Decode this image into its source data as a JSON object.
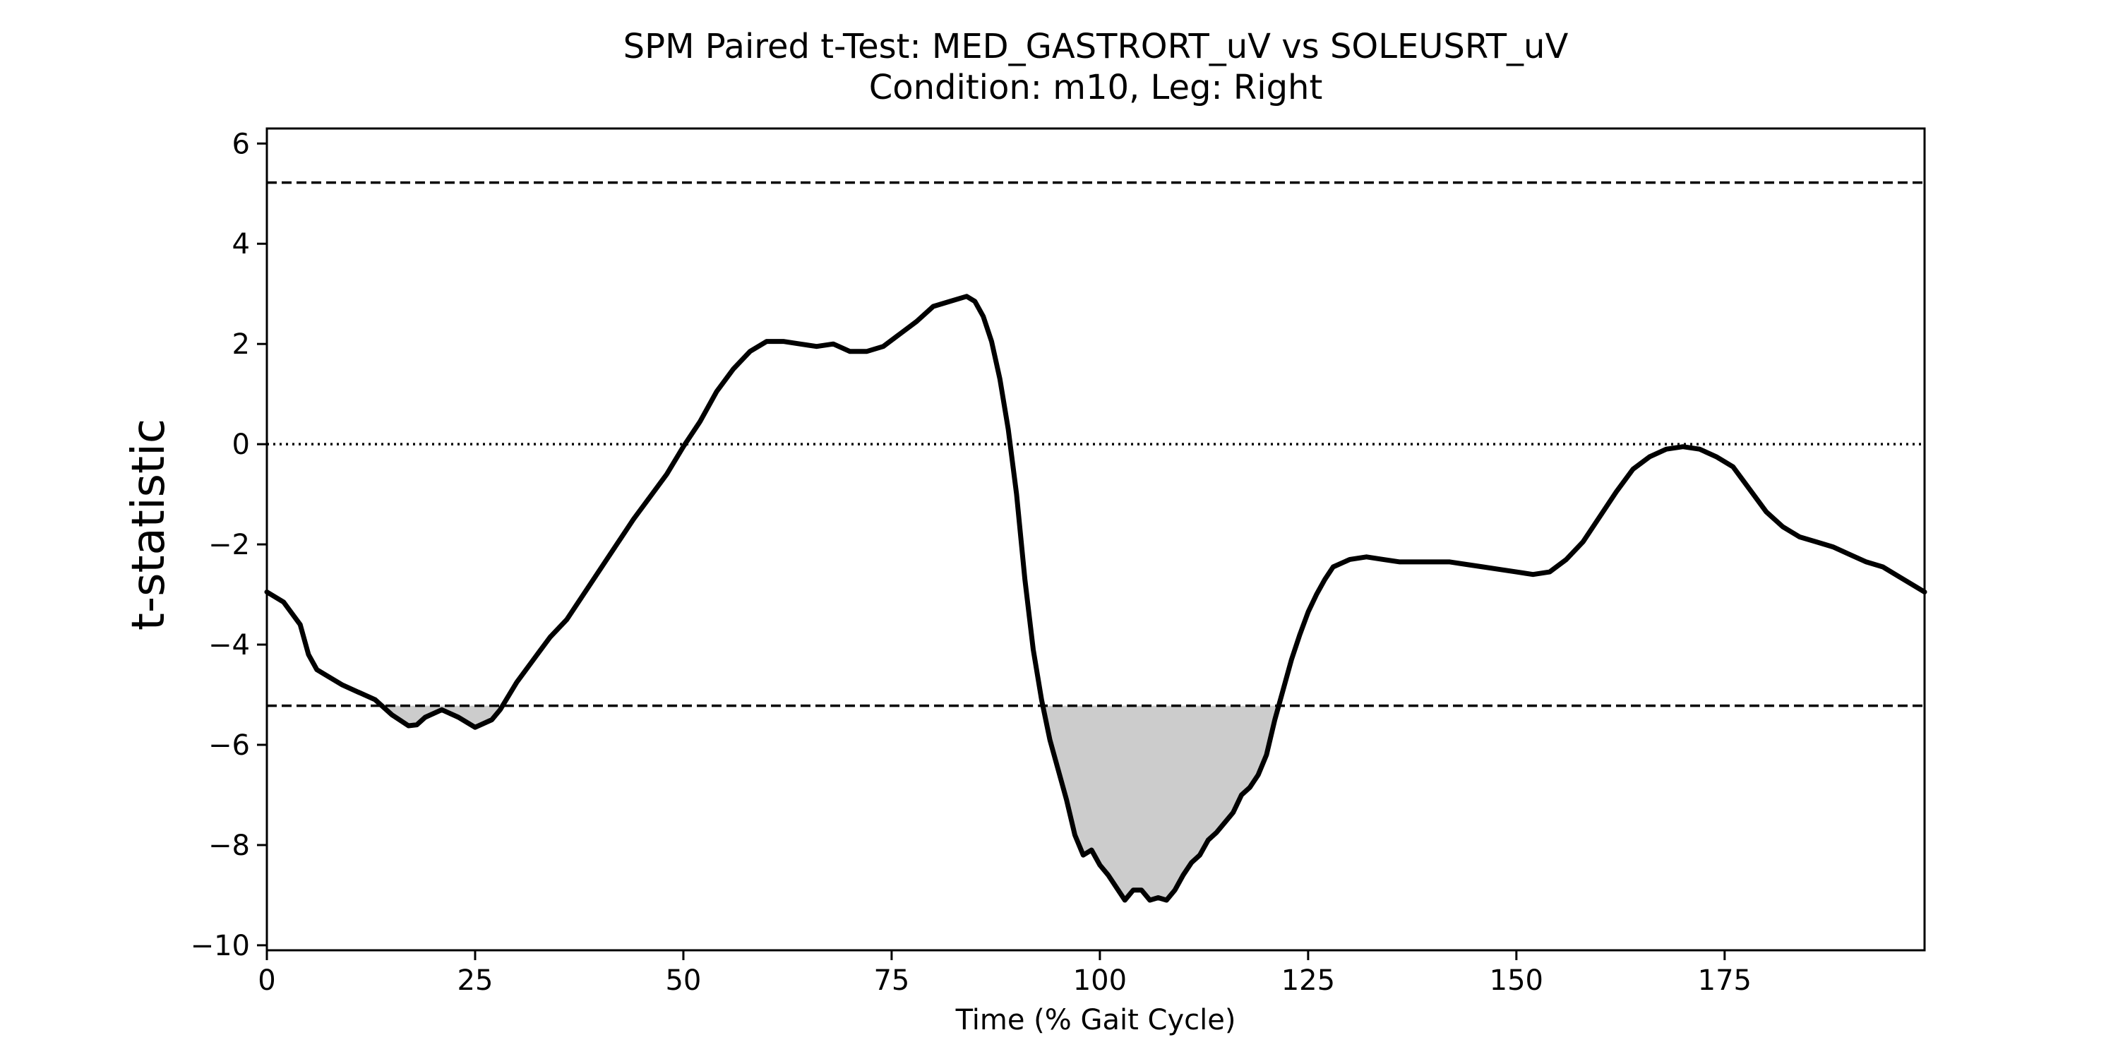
{
  "chart_data": {
    "type": "line",
    "title": "SPM Paired t-Test: MED_GASTRORT_uV vs SOLEUSRT_uV",
    "subtitle": "Condition: m10, Leg: Right",
    "xlabel": "Time (% Gait Cycle)",
    "ylabel": "t-statistic",
    "xlim": [
      0,
      199
    ],
    "ylim": [
      -10.1,
      6.3
    ],
    "xticks": [
      0,
      25,
      50,
      75,
      100,
      125,
      150,
      175
    ],
    "xtick_labels": [
      "0",
      "25",
      "50",
      "75",
      "100",
      "125",
      "150",
      "175"
    ],
    "yticks": [
      6,
      4,
      2,
      0,
      -2,
      -4,
      -6,
      -8,
      -10
    ],
    "ytick_labels": [
      "6",
      "4",
      "2",
      "0",
      "−2",
      "−4",
      "−6",
      "−8",
      "−10"
    ],
    "threshold": 5.22,
    "zero_line": 0,
    "grid": false,
    "line_color": "#000000",
    "fill_color": "#cccccc",
    "series": [
      {
        "x": [
          0,
          2,
          4,
          5,
          6,
          7,
          9,
          11,
          13,
          15,
          17,
          18,
          19,
          21,
          23,
          25,
          27,
          28,
          30,
          32,
          34,
          36,
          38,
          40,
          42,
          44,
          46,
          48,
          50,
          52,
          54,
          56,
          58,
          60,
          62,
          64,
          66,
          68,
          70,
          72,
          74,
          76,
          78,
          80,
          82,
          84,
          85,
          86,
          87,
          88,
          89,
          90,
          91,
          92,
          93,
          94,
          95,
          96,
          97,
          98,
          99,
          100,
          101,
          102,
          103,
          104,
          105,
          106,
          107,
          108,
          109,
          110,
          111,
          112,
          113,
          114,
          115,
          116,
          117,
          118,
          119,
          120,
          121,
          122,
          123,
          124,
          125,
          126,
          127,
          128,
          130,
          132,
          134,
          136,
          138,
          140,
          142,
          144,
          146,
          148,
          150,
          152,
          154,
          156,
          158,
          160,
          162,
          164,
          166,
          168,
          170,
          172,
          174,
          176,
          178,
          180,
          182,
          184,
          186,
          188,
          190,
          192,
          194,
          196,
          199
        ],
        "y": [
          -2.95,
          -3.15,
          -3.6,
          -4.2,
          -4.5,
          -4.6,
          -4.8,
          -4.95,
          -5.1,
          -5.4,
          -5.62,
          -5.6,
          -5.45,
          -5.3,
          -5.45,
          -5.65,
          -5.5,
          -5.3,
          -4.75,
          -4.3,
          -3.85,
          -3.5,
          -3.0,
          -2.5,
          -2.0,
          -1.5,
          -1.05,
          -0.6,
          -0.05,
          0.45,
          1.05,
          1.5,
          1.85,
          2.05,
          2.05,
          2.0,
          1.95,
          2.0,
          1.85,
          1.85,
          1.95,
          2.2,
          2.45,
          2.75,
          2.85,
          2.95,
          2.85,
          2.55,
          2.05,
          1.3,
          0.3,
          -1.0,
          -2.7,
          -4.1,
          -5.1,
          -5.9,
          -6.5,
          -7.1,
          -7.8,
          -8.2,
          -8.1,
          -8.4,
          -8.6,
          -8.85,
          -9.1,
          -8.9,
          -8.9,
          -9.1,
          -9.05,
          -9.1,
          -8.9,
          -8.6,
          -8.35,
          -8.2,
          -7.9,
          -7.75,
          -7.55,
          -7.35,
          -7.0,
          -6.85,
          -6.6,
          -6.2,
          -5.5,
          -4.9,
          -4.3,
          -3.8,
          -3.35,
          -3.0,
          -2.7,
          -2.45,
          -2.3,
          -2.25,
          -2.3,
          -2.35,
          -2.35,
          -2.35,
          -2.35,
          -2.4,
          -2.45,
          -2.5,
          -2.55,
          -2.6,
          -2.55,
          -2.3,
          -1.95,
          -1.45,
          -0.95,
          -0.5,
          -0.25,
          -0.1,
          -0.05,
          -0.1,
          -0.25,
          -0.45,
          -0.9,
          -1.35,
          -1.65,
          -1.85,
          -1.95,
          -2.05,
          -2.2,
          -2.35,
          -2.45,
          -2.65,
          -2.95
        ]
      }
    ]
  }
}
